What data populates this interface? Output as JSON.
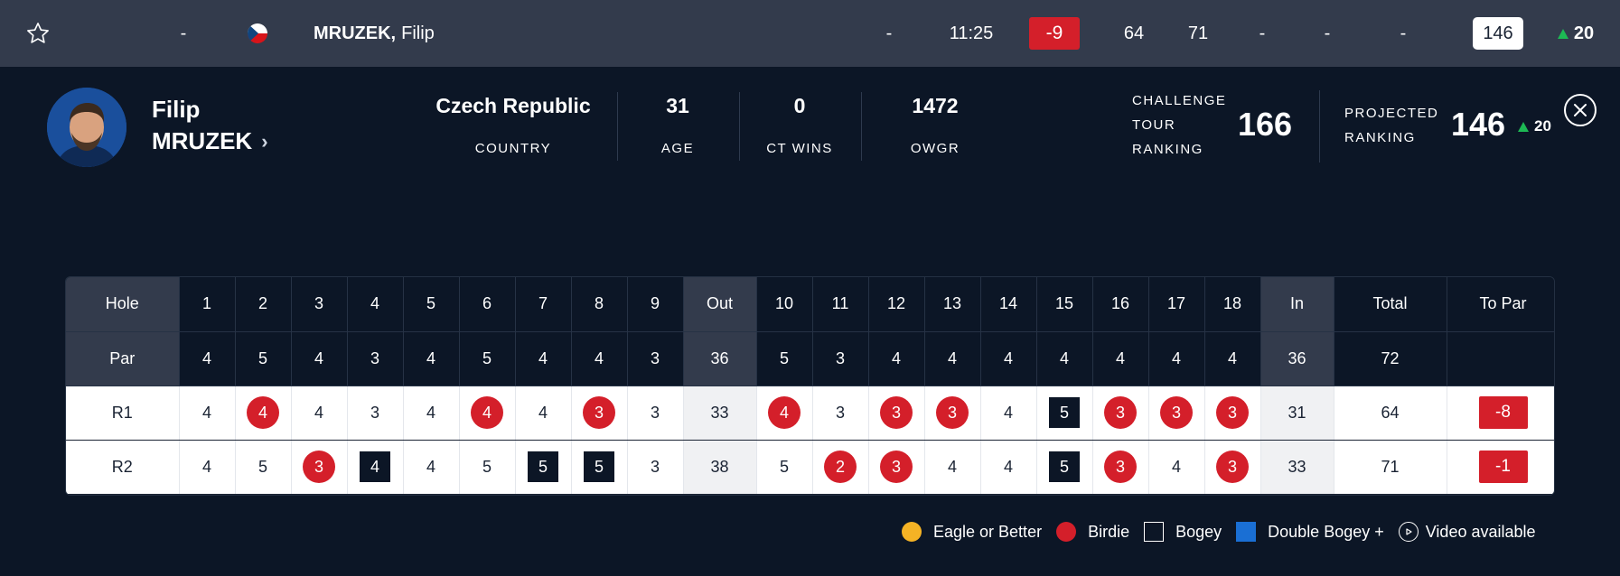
{
  "topbar": {
    "position": "-",
    "player_last": "MRUZEK,",
    "player_first": "Filip",
    "thru": "-",
    "tee_time": "11:25",
    "to_par": "-9",
    "r1": "64",
    "r2": "71",
    "r3": "-",
    "r4": "-",
    "total": "-",
    "ranking": "146",
    "movement": "20",
    "colors": {
      "accent_red": "#d41f2a",
      "up_green": "#1db954"
    }
  },
  "profile": {
    "first_name": "Filip",
    "last_name": "MRUZEK",
    "stats": [
      {
        "value": "Czech Republic",
        "label": "COUNTRY"
      },
      {
        "value": "31",
        "label": "AGE"
      },
      {
        "value": "0",
        "label": "CT WINS"
      },
      {
        "value": "1472",
        "label": "OWGR"
      }
    ],
    "ct_ranking_label_1": "CHALLENGE",
    "ct_ranking_label_2": "TOUR",
    "ct_ranking_label_3": "RANKING",
    "ct_ranking_value": "166",
    "projected_label_1": "PROJECTED",
    "projected_label_2": "RANKING",
    "projected_value": "146",
    "projected_movement": "20"
  },
  "scorecard": {
    "hole_label": "Hole",
    "par_label": "Par",
    "holes": [
      "1",
      "2",
      "3",
      "4",
      "5",
      "6",
      "7",
      "8",
      "9",
      "Out",
      "10",
      "11",
      "12",
      "13",
      "14",
      "15",
      "16",
      "17",
      "18",
      "In",
      "Total",
      "To Par"
    ],
    "pars": [
      "4",
      "5",
      "4",
      "3",
      "4",
      "5",
      "4",
      "4",
      "3",
      "36",
      "5",
      "3",
      "4",
      "4",
      "4",
      "4",
      "4",
      "4",
      "4",
      "36",
      "72",
      ""
    ],
    "rounds": [
      {
        "label": "R1",
        "scores": [
          "4",
          "4",
          "4",
          "3",
          "4",
          "4",
          "4",
          "3",
          "3",
          "33",
          "4",
          "3",
          "3",
          "3",
          "4",
          "5",
          "3",
          "3",
          "3",
          "31",
          "64",
          "-8"
        ],
        "types": [
          "",
          "birdie",
          "",
          "",
          "",
          "birdie",
          "",
          "birdie",
          "",
          "sum",
          "birdie",
          "",
          "birdie",
          "birdie",
          "",
          "bogey",
          "birdie",
          "birdie",
          "birdie",
          "sum",
          "",
          "topar"
        ]
      },
      {
        "label": "R2",
        "scores": [
          "4",
          "5",
          "3",
          "4",
          "4",
          "5",
          "5",
          "5",
          "3",
          "38",
          "5",
          "2",
          "3",
          "4",
          "4",
          "5",
          "3",
          "4",
          "3",
          "33",
          "71",
          "-1"
        ],
        "types": [
          "",
          "",
          "birdie",
          "bogey",
          "",
          "",
          "bogey",
          "bogey",
          "",
          "sum",
          "",
          "birdie",
          "birdie",
          "",
          "",
          "bogey",
          "birdie",
          "",
          "birdie",
          "sum",
          "",
          "topar"
        ]
      }
    ]
  },
  "legend": {
    "eagle": "Eagle or Better",
    "birdie": "Birdie",
    "bogey": "Bogey",
    "double_bogey": "Double Bogey +",
    "video": "Video available",
    "colors": {
      "eagle": "#f5b325",
      "birdie": "#d41f2a",
      "bogey": "#0c1626",
      "double_bogey": "#1a6fd4"
    }
  }
}
